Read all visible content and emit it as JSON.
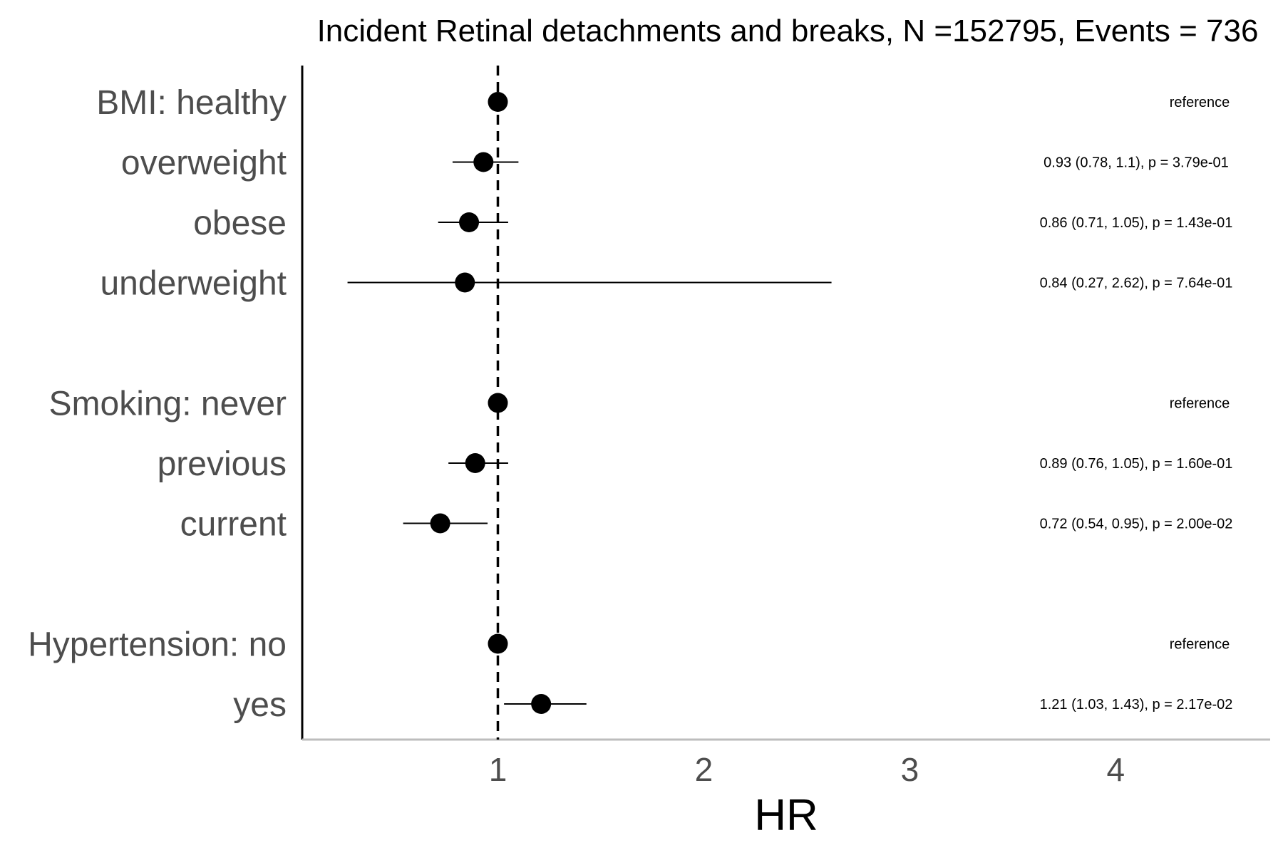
{
  "chart_data": {
    "type": "scatter",
    "subtype": "forest-plot",
    "title": "Incident Retinal detachments and breaks, N =152795, Events = 736",
    "xlabel": "HR",
    "ylabel": "",
    "xlim": [
      0.05,
      4.75
    ],
    "x_ticks": [
      1,
      2,
      3,
      4
    ],
    "x_tick_labels": [
      "1",
      "2",
      "3",
      "4"
    ],
    "reference_line": 1,
    "grid": false,
    "legend": "none",
    "rows": [
      {
        "label": "BMI: healthy",
        "hr": 1.0,
        "lower": null,
        "upper": null,
        "annotation": "reference"
      },
      {
        "label": "overweight",
        "hr": 0.93,
        "lower": 0.78,
        "upper": 1.1,
        "annotation": "0.93 (0.78, 1.1), p = 3.79e-01"
      },
      {
        "label": "obese",
        "hr": 0.86,
        "lower": 0.71,
        "upper": 1.05,
        "annotation": "0.86 (0.71, 1.05), p = 1.43e-01"
      },
      {
        "label": "underweight",
        "hr": 0.84,
        "lower": 0.27,
        "upper": 2.62,
        "annotation": "0.84 (0.27, 2.62), p = 7.64e-01"
      },
      {
        "label": "",
        "hr": null,
        "lower": null,
        "upper": null,
        "annotation": ""
      },
      {
        "label": "Smoking: never",
        "hr": 1.0,
        "lower": null,
        "upper": null,
        "annotation": "reference"
      },
      {
        "label": "previous",
        "hr": 0.89,
        "lower": 0.76,
        "upper": 1.05,
        "annotation": "0.89 (0.76, 1.05), p = 1.60e-01"
      },
      {
        "label": "current",
        "hr": 0.72,
        "lower": 0.54,
        "upper": 0.95,
        "annotation": "0.72 (0.54, 0.95), p = 2.00e-02"
      },
      {
        "label": "",
        "hr": null,
        "lower": null,
        "upper": null,
        "annotation": ""
      },
      {
        "label": "Hypertension: no",
        "hr": 1.0,
        "lower": null,
        "upper": null,
        "annotation": "reference"
      },
      {
        "label": "yes",
        "hr": 1.21,
        "lower": 1.03,
        "upper": 1.43,
        "annotation": "1.21 (1.03, 1.43), p = 2.17e-02"
      }
    ]
  }
}
